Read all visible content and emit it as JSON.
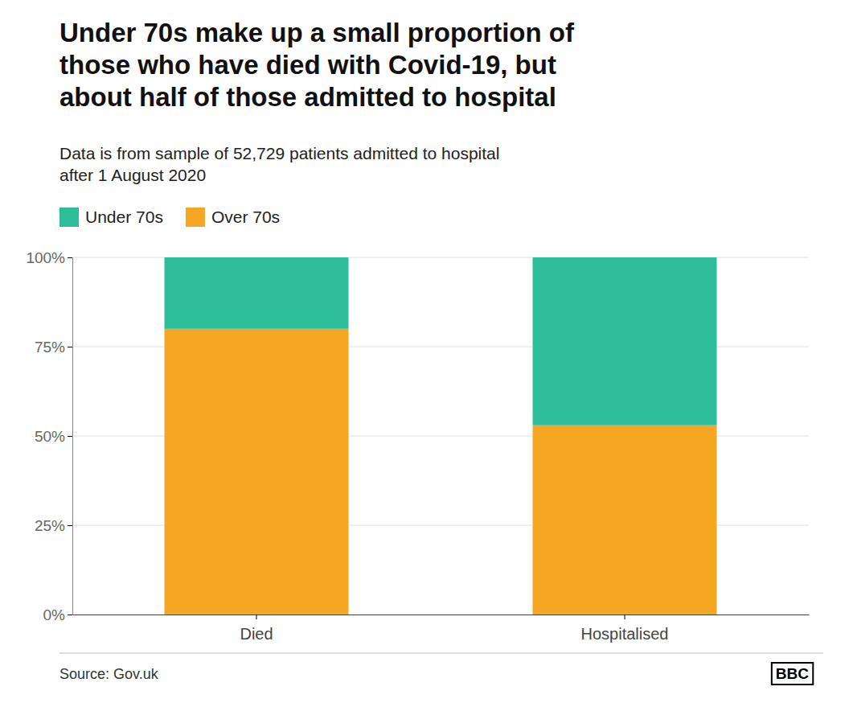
{
  "chart_data": {
    "type": "bar",
    "stacked": true,
    "title": "Under 70s make up a small proportion of\nthose who have died with Covid-19, but\nabout half of those admitted to hospital",
    "subtitle": "Data is from sample of 52,729 patients admitted to hospital\nafter 1 August 2020",
    "categories": [
      "Died",
      "Hospitalised"
    ],
    "series": [
      {
        "name": "Over 70s",
        "color": "#F5A623",
        "values": [
          80,
          53
        ]
      },
      {
        "name": "Under 70s",
        "color": "#2EBD9A",
        "values": [
          20,
          47
        ]
      }
    ],
    "ylim": [
      0,
      100
    ],
    "yticks": [
      {
        "value": 0,
        "label": "0%"
      },
      {
        "value": 25,
        "label": "25%"
      },
      {
        "value": 50,
        "label": "50%"
      },
      {
        "value": 75,
        "label": "75%"
      },
      {
        "value": 100,
        "label": "100%"
      }
    ],
    "grid": true,
    "legend": "top-left",
    "source": "Source: Gov.uk",
    "credit": "BBC"
  }
}
